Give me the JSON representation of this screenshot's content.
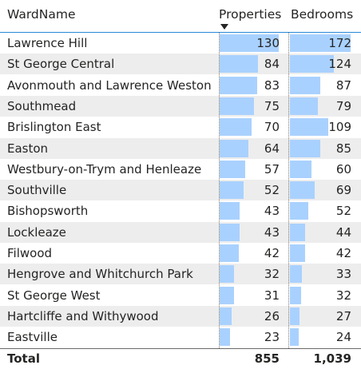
{
  "columns": {
    "ward": "WardName",
    "properties": "Properties",
    "bedrooms": "Bedrooms"
  },
  "sort": {
    "column": "properties",
    "direction": "descending",
    "icon": "sort-descending-icon"
  },
  "bar_color": "#a9d1ff",
  "alt_row_color": "#ededed",
  "accent_color": "#2b88d8",
  "rows": [
    {
      "name": "Lawrence Hill",
      "properties": 130,
      "bedrooms": 172
    },
    {
      "name": "St George Central",
      "properties": 84,
      "bedrooms": 124
    },
    {
      "name": "Avonmouth and Lawrence Weston",
      "properties": 83,
      "bedrooms": 87
    },
    {
      "name": "Southmead",
      "properties": 75,
      "bedrooms": 79
    },
    {
      "name": "Brislington East",
      "properties": 70,
      "bedrooms": 109
    },
    {
      "name": "Easton",
      "properties": 64,
      "bedrooms": 85
    },
    {
      "name": "Westbury-on-Trym and Henleaze",
      "properties": 57,
      "bedrooms": 60
    },
    {
      "name": "Southville",
      "properties": 52,
      "bedrooms": 69
    },
    {
      "name": "Bishopsworth",
      "properties": 43,
      "bedrooms": 52
    },
    {
      "name": "Lockleaze",
      "properties": 43,
      "bedrooms": 44
    },
    {
      "name": "Filwood",
      "properties": 42,
      "bedrooms": 42
    },
    {
      "name": "Hengrove and Whitchurch Park",
      "properties": 32,
      "bedrooms": 33
    },
    {
      "name": "St George West",
      "properties": 31,
      "bedrooms": 32
    },
    {
      "name": "Hartcliffe and Withywood",
      "properties": 26,
      "bedrooms": 27
    },
    {
      "name": "Eastville",
      "properties": 23,
      "bedrooms": 24
    }
  ],
  "total": {
    "label": "Total",
    "properties": "855",
    "bedrooms": "1,039"
  }
}
